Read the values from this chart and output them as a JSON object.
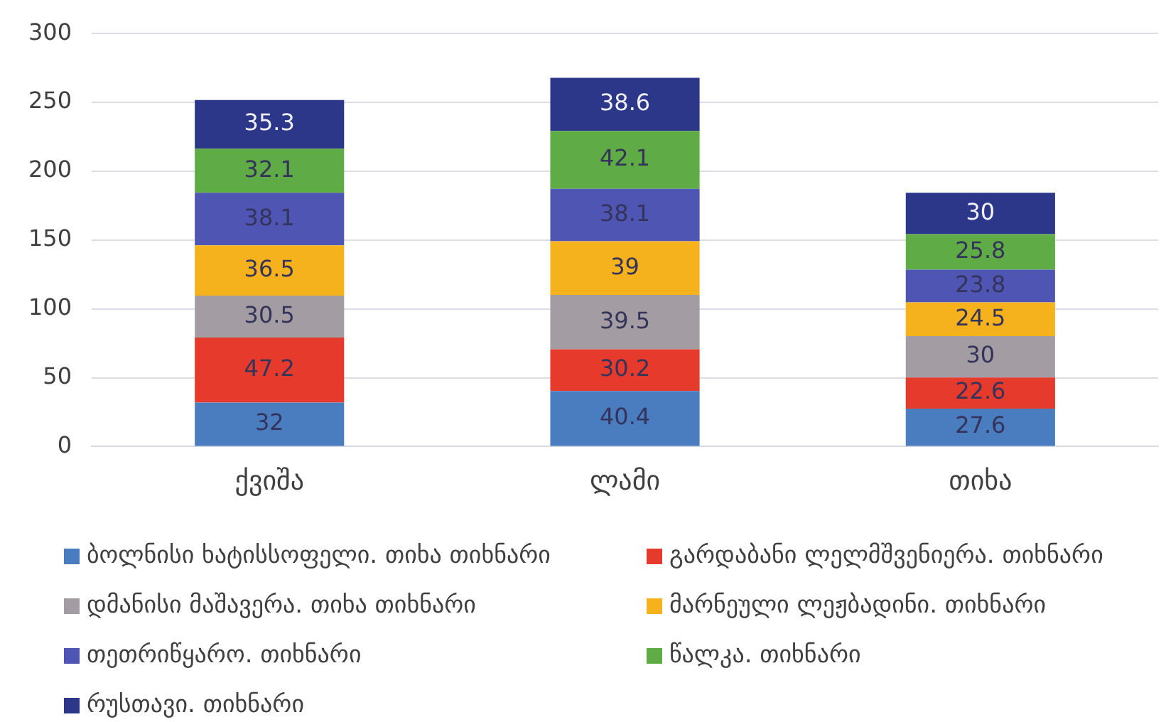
{
  "chart_data": {
    "type": "bar",
    "stacked": true,
    "categories": [
      "ქვიშა",
      "ლამი",
      "თიხა"
    ],
    "series": [
      {
        "name": "ბოლნისი ხატისსოფელი. თიხა თიხნარი",
        "color": "#4a7cc0",
        "values": [
          32,
          40.4,
          27.6
        ]
      },
      {
        "name": "გარდაბანი ლელმშვენიერა. თიხნარი",
        "color": "#e53a2c",
        "values": [
          47.2,
          30.2,
          22.6
        ]
      },
      {
        "name": "დმანისი მაშავერა. თიხა თიხნარი",
        "color": "#a39ca3",
        "values": [
          30.5,
          39.5,
          30
        ]
      },
      {
        "name": "მარნეული ლეჟბადინი. თიხნარი",
        "color": "#f6b21c",
        "values": [
          36.5,
          39,
          24.5
        ]
      },
      {
        "name": "თეთრიწყარო. თიხნარი",
        "color": "#4e55b3",
        "values": [
          38.1,
          38.1,
          23.8
        ]
      },
      {
        "name": "წალკა. თიხნარი",
        "color": "#5fab46",
        "values": [
          32.1,
          42.1,
          25.8
        ]
      },
      {
        "name": "რუსთავი. თიხნარი",
        "color": "#2d3789",
        "values": [
          35.3,
          38.6,
          30
        ]
      }
    ],
    "ylim": [
      0,
      300
    ],
    "yticks": [
      0,
      50,
      100,
      150,
      200,
      250,
      300
    ],
    "grid": "y",
    "legend": "bottom",
    "data_labels": true
  }
}
